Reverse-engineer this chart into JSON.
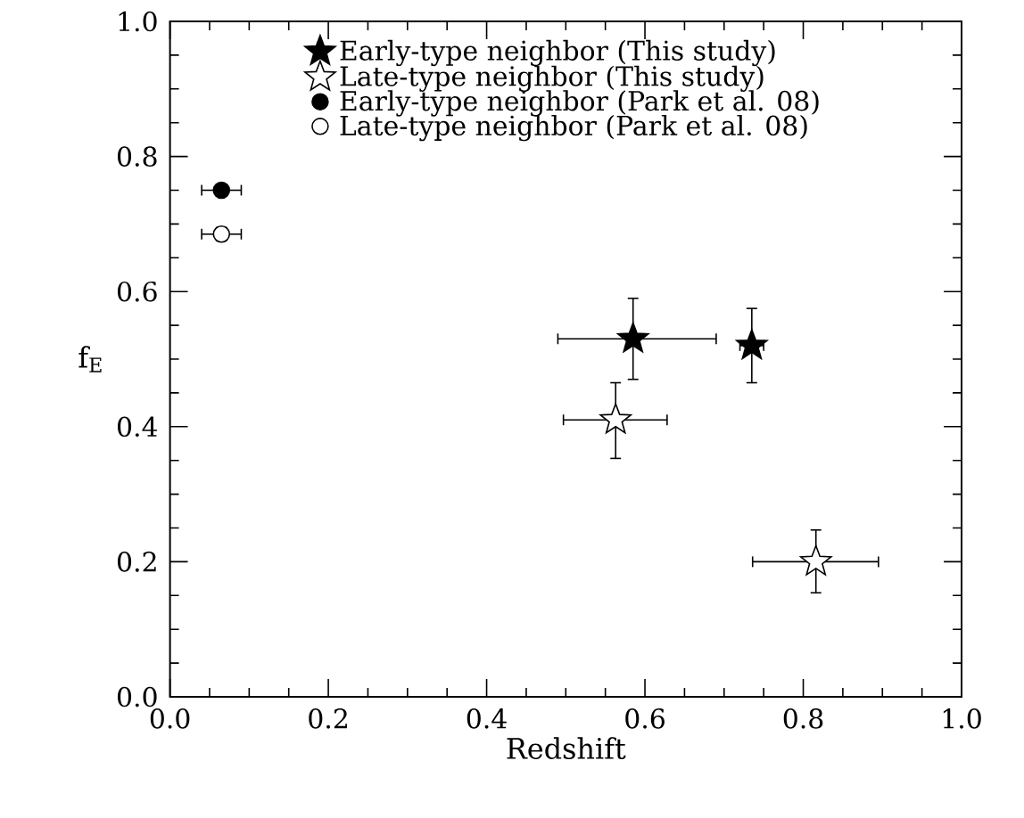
{
  "chart_data": {
    "type": "scatter",
    "xlabel": "Redshift",
    "ylabel": "f$_{E}$",
    "xlim": [
      0.0,
      1.0
    ],
    "ylim": [
      0.0,
      1.0
    ],
    "xticks": [
      {
        "value": 0.0,
        "label": "0.0"
      },
      0.2,
      0.4,
      0.6,
      0.8,
      {
        "value": 1.0,
        "label": "1.0"
      }
    ],
    "yticks": [
      {
        "value": 0.0,
        "label": "0.0"
      },
      0.2,
      0.4,
      0.6,
      0.8,
      {
        "value": 1.0,
        "label": "1.0"
      }
    ],
    "legend": "top",
    "grid": false,
    "series": [
      {
        "name": "Early-type neighbor (This study)",
        "color": "#000000",
        "marker": "star",
        "x": [
          0.585,
          0.735
        ],
        "values": [
          0.53,
          0.52
        ],
        "xerrors": [
          [
            0.49,
            0.69
          ],
          [
            0.72,
            0.75
          ]
        ],
        "errors": [
          [
            0.47,
            0.59
          ],
          [
            0.465,
            0.575
          ]
        ]
      },
      {
        "name": "Late-type neighbor (This study)",
        "color": "#ffffff",
        "marker": "star",
        "x": [
          0.563,
          0.816
        ],
        "values": [
          0.41,
          0.2
        ],
        "xerrors": [
          [
            0.497,
            0.628
          ],
          [
            0.736,
            0.895
          ]
        ],
        "errors": [
          [
            0.353,
            0.465
          ],
          [
            0.154,
            0.247
          ]
        ]
      },
      {
        "name": "Early-type neighbor (Park et al. 08)",
        "color": "#000000",
        "marker": "circle",
        "x": [
          0.065
        ],
        "values": [
          0.75
        ],
        "xerrors": [
          [
            0.04,
            0.09
          ]
        ],
        "errors": [
          null
        ]
      },
      {
        "name": "Late-type neighbor (Park et al. 08)",
        "color": "#ffffff",
        "marker": "circle",
        "x": [
          0.065
        ],
        "values": [
          0.685
        ],
        "xerrors": [
          [
            0.04,
            0.09
          ]
        ],
        "errors": [
          [
            0.675,
            0.695
          ]
        ]
      }
    ]
  }
}
